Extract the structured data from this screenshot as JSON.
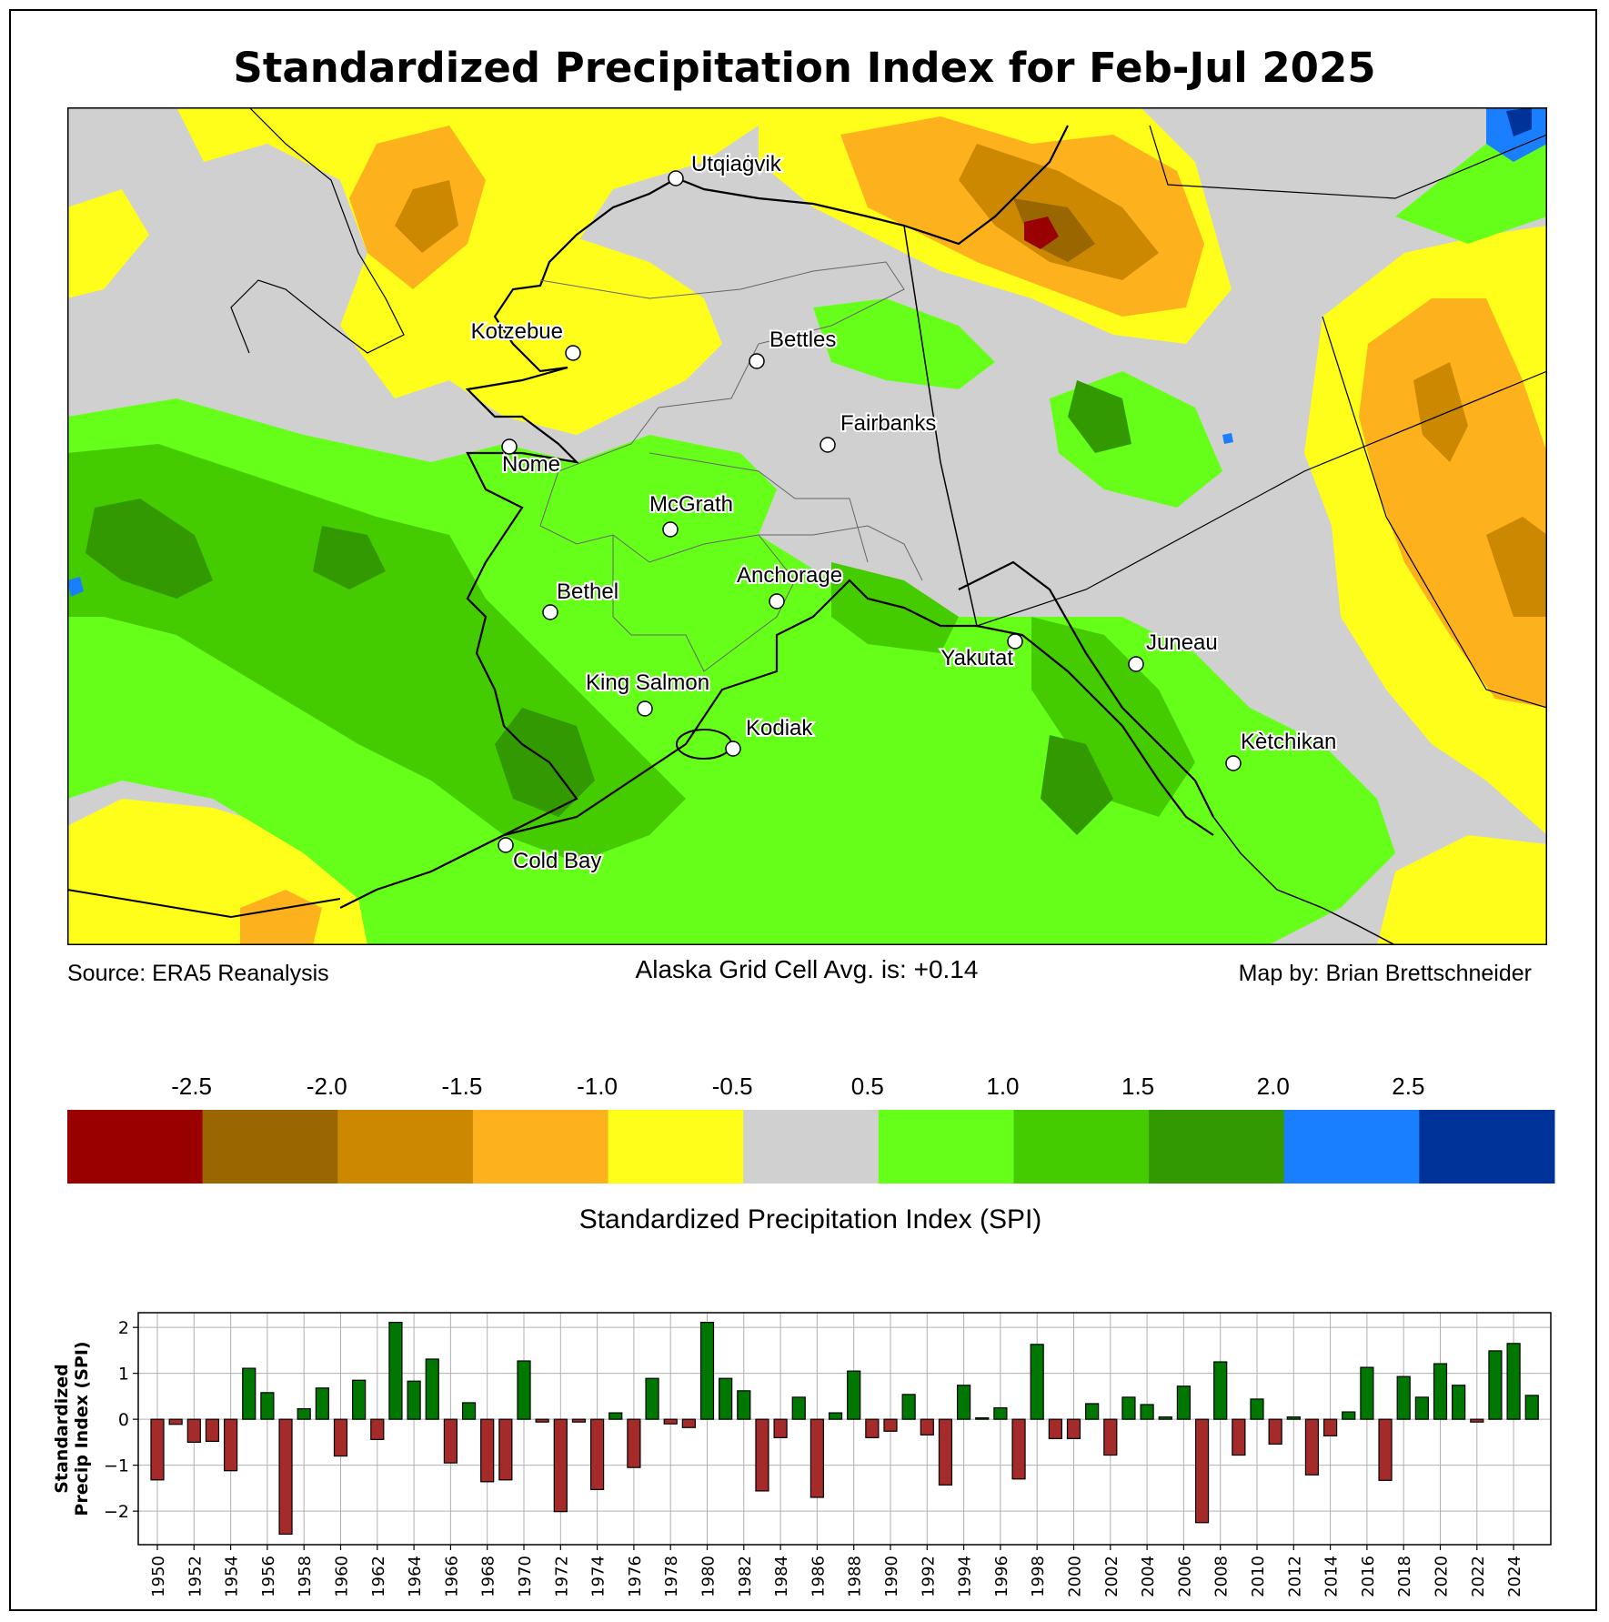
{
  "title": "Standardized Precipitation Index for Feb-Jul 2025",
  "footer": {
    "source": "Source: ERA5 Reanalysis",
    "average": "Alaska Grid Cell Avg. is: +0.14",
    "credit": "Map by: Brian Brettschneider"
  },
  "map": {
    "cities": [
      {
        "name": "Utqiaġvik"
      },
      {
        "name": "Kotzebue"
      },
      {
        "name": "Bettles"
      },
      {
        "name": "Nome"
      },
      {
        "name": "Fairbanks"
      },
      {
        "name": "McGrath"
      },
      {
        "name": "Bethel"
      },
      {
        "name": "Anchorage"
      },
      {
        "name": "King Salmon"
      },
      {
        "name": "Kodiak"
      },
      {
        "name": "Yakutat"
      },
      {
        "name": "Juneau"
      },
      {
        "name": "Kètchikan"
      },
      {
        "name": "Cold Bay"
      }
    ]
  },
  "colorbar": {
    "label": "Standardized Precipitation Index (SPI)",
    "tick_labels": [
      "-2.5",
      "-2.0",
      "-1.5",
      "-1.0",
      "-0.5",
      "0.5",
      "1.0",
      "1.5",
      "2.0",
      "2.5"
    ],
    "colors": [
      "#990000",
      "#9a6600",
      "#cc8800",
      "#fdb11d",
      "#fefe1a",
      "#d0d0d0",
      "#66ff19",
      "#44cc00",
      "#339900",
      "#1a7fff",
      "#003399"
    ]
  },
  "chart_data": {
    "type": "bar",
    "title": "",
    "xlabel": "",
    "ylabel": "Standardized\nPrecip Index (SPI)",
    "ylabel_lines": [
      "Standardized",
      "Precip Index (SPI)"
    ],
    "ylim": [
      -2.73,
      2.32
    ],
    "xlim": [
      1949,
      2026
    ],
    "grid": true,
    "yticks": [
      2,
      1,
      0,
      -1,
      -2
    ],
    "ytick_labels": [
      "2",
      "1",
      "0",
      "−1",
      "−2"
    ],
    "xtick_labels": [
      "1950",
      "1952",
      "1954",
      "1956",
      "1958",
      "1960",
      "1962",
      "1964",
      "1966",
      "1968",
      "1970",
      "1972",
      "1974",
      "1976",
      "1978",
      "1980",
      "1982",
      "1984",
      "1986",
      "1988",
      "1990",
      "1992",
      "1994",
      "1996",
      "1998",
      "2000",
      "2002",
      "2004",
      "2006",
      "2008",
      "2010",
      "2012",
      "2014",
      "2016",
      "2018",
      "2020",
      "2022",
      "2024"
    ],
    "positive_color": "#007700",
    "negative_color": "#a52a2a",
    "x": [
      1950,
      1951,
      1952,
      1953,
      1954,
      1955,
      1956,
      1957,
      1958,
      1959,
      1960,
      1961,
      1962,
      1963,
      1964,
      1965,
      1966,
      1967,
      1968,
      1969,
      1970,
      1971,
      1972,
      1973,
      1974,
      1975,
      1976,
      1977,
      1978,
      1979,
      1980,
      1981,
      1982,
      1983,
      1984,
      1985,
      1986,
      1987,
      1988,
      1989,
      1990,
      1991,
      1992,
      1993,
      1994,
      1995,
      1996,
      1997,
      1998,
      1999,
      2000,
      2001,
      2002,
      2003,
      2004,
      2005,
      2006,
      2007,
      2008,
      2009,
      2010,
      2011,
      2012,
      2013,
      2014,
      2015,
      2016,
      2017,
      2018,
      2019,
      2020,
      2021,
      2022,
      2023,
      2024,
      2025
    ],
    "values": [
      -1.32,
      -0.11,
      -0.5,
      -0.48,
      -1.12,
      1.11,
      0.58,
      -2.5,
      0.23,
      0.68,
      -0.8,
      0.85,
      -0.44,
      2.11,
      0.83,
      1.31,
      -0.95,
      0.36,
      -1.36,
      -1.32,
      1.27,
      -0.06,
      -2.01,
      -0.06,
      -1.53,
      0.14,
      -1.05,
      0.89,
      -0.1,
      -0.18,
      2.11,
      0.89,
      0.62,
      -1.56,
      -0.4,
      0.48,
      -1.7,
      0.14,
      1.05,
      -0.4,
      -0.26,
      0.54,
      -0.34,
      -1.43,
      0.74,
      0.03,
      0.25,
      -1.3,
      1.63,
      -0.42,
      -0.42,
      0.34,
      -0.78,
      0.48,
      0.32,
      0.05,
      0.72,
      -2.25,
      1.25,
      -0.78,
      0.44,
      -0.54,
      0.05,
      -1.21,
      -0.36,
      0.16,
      1.13,
      -1.33,
      0.93,
      0.48,
      1.21,
      0.74,
      -0.06,
      1.49,
      1.65,
      0.52
    ]
  }
}
